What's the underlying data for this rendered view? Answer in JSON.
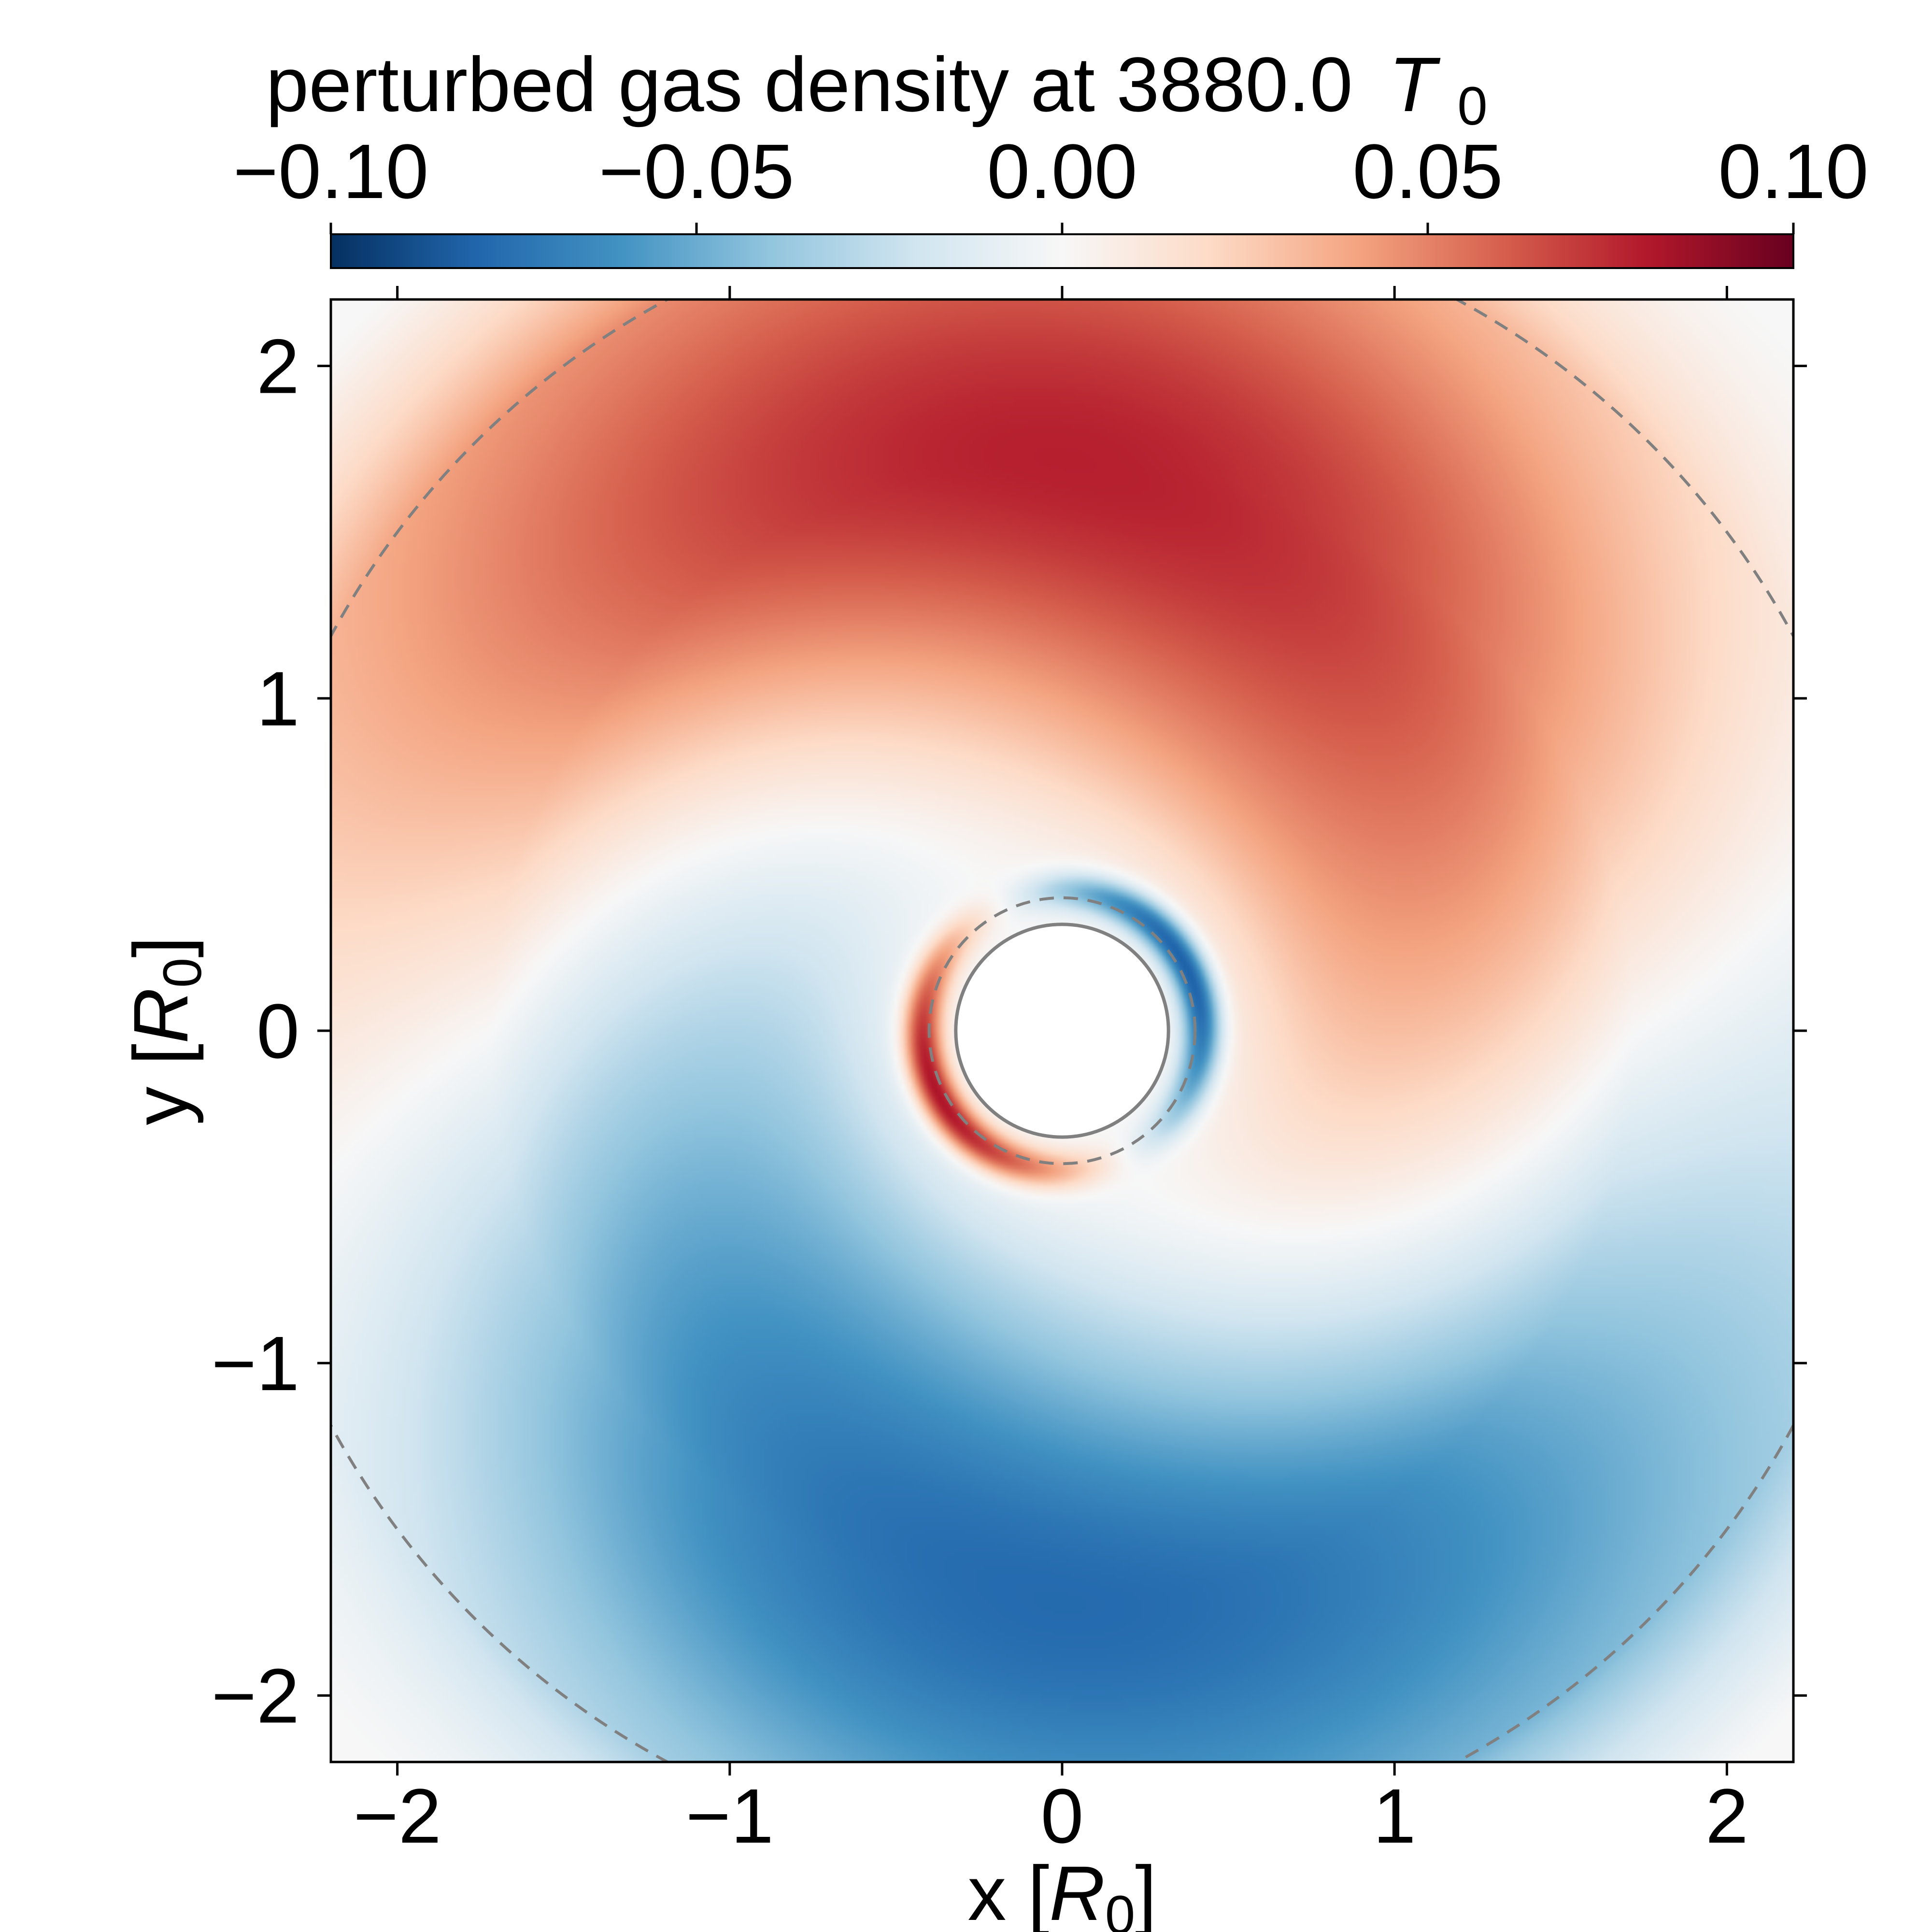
{
  "chart_data": {
    "type": "heatmap",
    "title_main": "perturbed gas density at 3880.0",
    "title_symbol": "T",
    "title_subscript": "0",
    "xlabel_main": "x [",
    "xlabel_symbol": "R",
    "xlabel_subscript": "0",
    "xlabel_close": "]",
    "ylabel_main": "y [",
    "ylabel_symbol": "R",
    "ylabel_subscript": "0",
    "ylabel_close": "]",
    "xlim": [
      -2.2,
      2.2
    ],
    "ylim": [
      -2.2,
      2.2
    ],
    "xticks": [
      -2,
      -1,
      0,
      1,
      2
    ],
    "xtick_labels": [
      "−2",
      "−1",
      "0",
      "1",
      "2"
    ],
    "yticks": [
      -2,
      -1,
      0,
      1,
      2
    ],
    "ytick_labels": [
      "−2",
      "−1",
      "0",
      "1",
      "2"
    ],
    "colorbar": {
      "min": -0.1,
      "max": 0.1,
      "ticks": [
        -0.1,
        -0.05,
        0.0,
        0.05,
        0.1
      ],
      "tick_labels": [
        "−0.10",
        "−0.05",
        "0.00",
        "0.05",
        "0.10"
      ],
      "colormap": "RdBu_r",
      "placement": "top"
    },
    "inner_boundary_radius": 0.32,
    "dashed_circles_radius": [
      0.4,
      2.5
    ],
    "field_model": {
      "description_of_values": "large-scale m=1 spiral: positive lobe upper half, negative lobe lower half, extremes near |y|=1.7",
      "global_amplitude": 0.078,
      "peak_radius": 1.72,
      "inner_ring_amplitude": 0.085
    },
    "grid": false
  },
  "colors": {
    "axis": "#000000",
    "dashed_circle": "#808080",
    "inner_circle": "#808080",
    "hole": "#ffffff",
    "colormap_stops": [
      "#053061",
      "#2166ac",
      "#4393c3",
      "#92c5de",
      "#d1e5f0",
      "#f7f7f7",
      "#fddbc7",
      "#f4a582",
      "#d6604d",
      "#b2182b",
      "#67001f"
    ]
  }
}
